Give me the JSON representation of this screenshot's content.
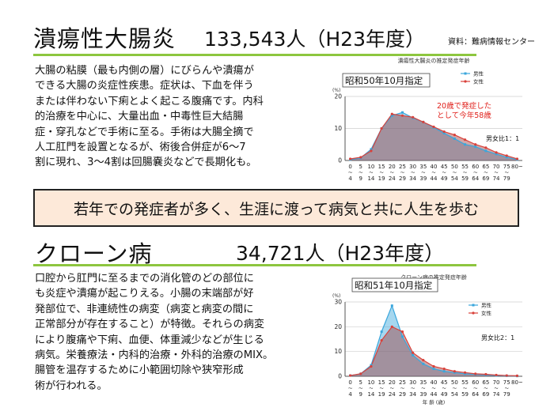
{
  "uc": {
    "title": "潰瘍性大腸炎",
    "stat": "133,543人（H23年度）",
    "source": "資料：難病情報センター",
    "body_lines": [
      "大腸の粘膜（最も内側の層）にびらんや潰瘍が",
      "できる大腸の炎症性疾患。症状は、下血を伴う",
      "または伴わない下痢とよく起こる腹痛です。内科",
      "的治療を中心に、大量出血・中毒性巨大結腸",
      "症・穿孔などで手術に至る。手術は大腸全摘で",
      "人工肛門を設置となるが、術後合併症が6～7",
      "割に現れ、3～4割は回腸嚢炎などで長期化も。"
    ]
  },
  "banner": {
    "text": "若年での発症者が多く、生涯に渡って病気と共に人生を歩む"
  },
  "crohn": {
    "title": "クローン病",
    "stat": "34,721人（H23年度）",
    "body_lines": [
      "口腔から肛門に至るまでの消化管のどの部位に",
      "も炎症や潰瘍が起こりえる。小腸の末端部が好",
      "発部位で、非連続性の病変（病変と病変の間に",
      "正常部分が存在すること）が特徴。それらの病変",
      "により腹痛や下痢、血便、体重減少などが生じる",
      "病気。栄養療法・内科的治療・外科的治療のMIX。",
      "腸管を温存するために小範囲切除や狭窄形成",
      "術が行われる。"
    ]
  },
  "colors": {
    "male": "#3aa6dc",
    "female": "#d9413a",
    "accent_rule": "#8dc63f",
    "banner_bg": "#fde9d9",
    "fill_female": "#9e3c3c"
  },
  "chart_data": [
    {
      "type": "area",
      "title": "潰瘍性大腸炎の推定発症年齢",
      "ylabel": "(%)",
      "ylim": [
        0,
        20
      ],
      "yticks": [
        0,
        10,
        20
      ],
      "legend_position": "top-right",
      "x_start": [
        "0",
        "5",
        "10",
        "15",
        "20",
        "25",
        "30",
        "35",
        "40",
        "45",
        "50",
        "55",
        "60",
        "65",
        "70",
        "75",
        "80~"
      ],
      "x_end": [
        "4",
        "9",
        "14",
        "19",
        "24",
        "29",
        "34",
        "39",
        "44",
        "49",
        "54",
        "59",
        "64",
        "69",
        "74",
        "79",
        ""
      ],
      "series": [
        {
          "name": "男性",
          "values": [
            0.3,
            0.8,
            3.5,
            10.0,
            14.0,
            15.0,
            13.3,
            12.0,
            10.3,
            8.5,
            6.8,
            5.0,
            4.3,
            3.0,
            2.0,
            1.0,
            0.3
          ]
        },
        {
          "name": "女性",
          "values": [
            0.5,
            1.0,
            3.0,
            10.0,
            14.5,
            14.0,
            13.5,
            12.0,
            10.5,
            9.0,
            8.0,
            6.5,
            5.0,
            4.0,
            2.5,
            1.5,
            0.5
          ]
        }
      ],
      "annotations": {
        "date": "昭和50年10月指定",
        "note_line1": "20歳で発症した",
        "note_line2": "として今年58歳",
        "ratio": "男女比1：1"
      }
    },
    {
      "type": "area",
      "title": "クローン病の推定発症年齢",
      "ylabel": "(%)",
      "ylim": [
        0,
        30
      ],
      "yticks": [
        0,
        10,
        20,
        30
      ],
      "legend_position": "top-right",
      "xlabel": "年 齢 (歳)",
      "x_start": [
        "0",
        "5",
        "10",
        "15",
        "20",
        "25",
        "30",
        "35",
        "40",
        "45",
        "50",
        "55",
        "60",
        "65",
        "70",
        "75",
        "80~"
      ],
      "x_end": [
        "4",
        "9",
        "14",
        "19",
        "24",
        "29",
        "34",
        "39",
        "44",
        "49",
        "54",
        "59",
        "64",
        "69",
        "74",
        "79",
        ""
      ],
      "series": [
        {
          "name": "男性",
          "values": [
            0.3,
            1.0,
            4.5,
            18.0,
            28.5,
            16.0,
            8.5,
            5.0,
            3.0,
            2.0,
            1.5,
            1.0,
            0.8,
            0.5,
            0.3,
            0.2,
            0.1
          ]
        },
        {
          "name": "女性",
          "values": [
            0.3,
            1.0,
            4.0,
            14.5,
            20.0,
            18.0,
            9.5,
            6.5,
            4.0,
            3.0,
            2.0,
            1.5,
            1.0,
            0.8,
            0.5,
            0.3,
            0.2
          ]
        }
      ],
      "annotations": {
        "date": "昭和51年10月指定",
        "ratio": "男女比2：1"
      }
    }
  ]
}
